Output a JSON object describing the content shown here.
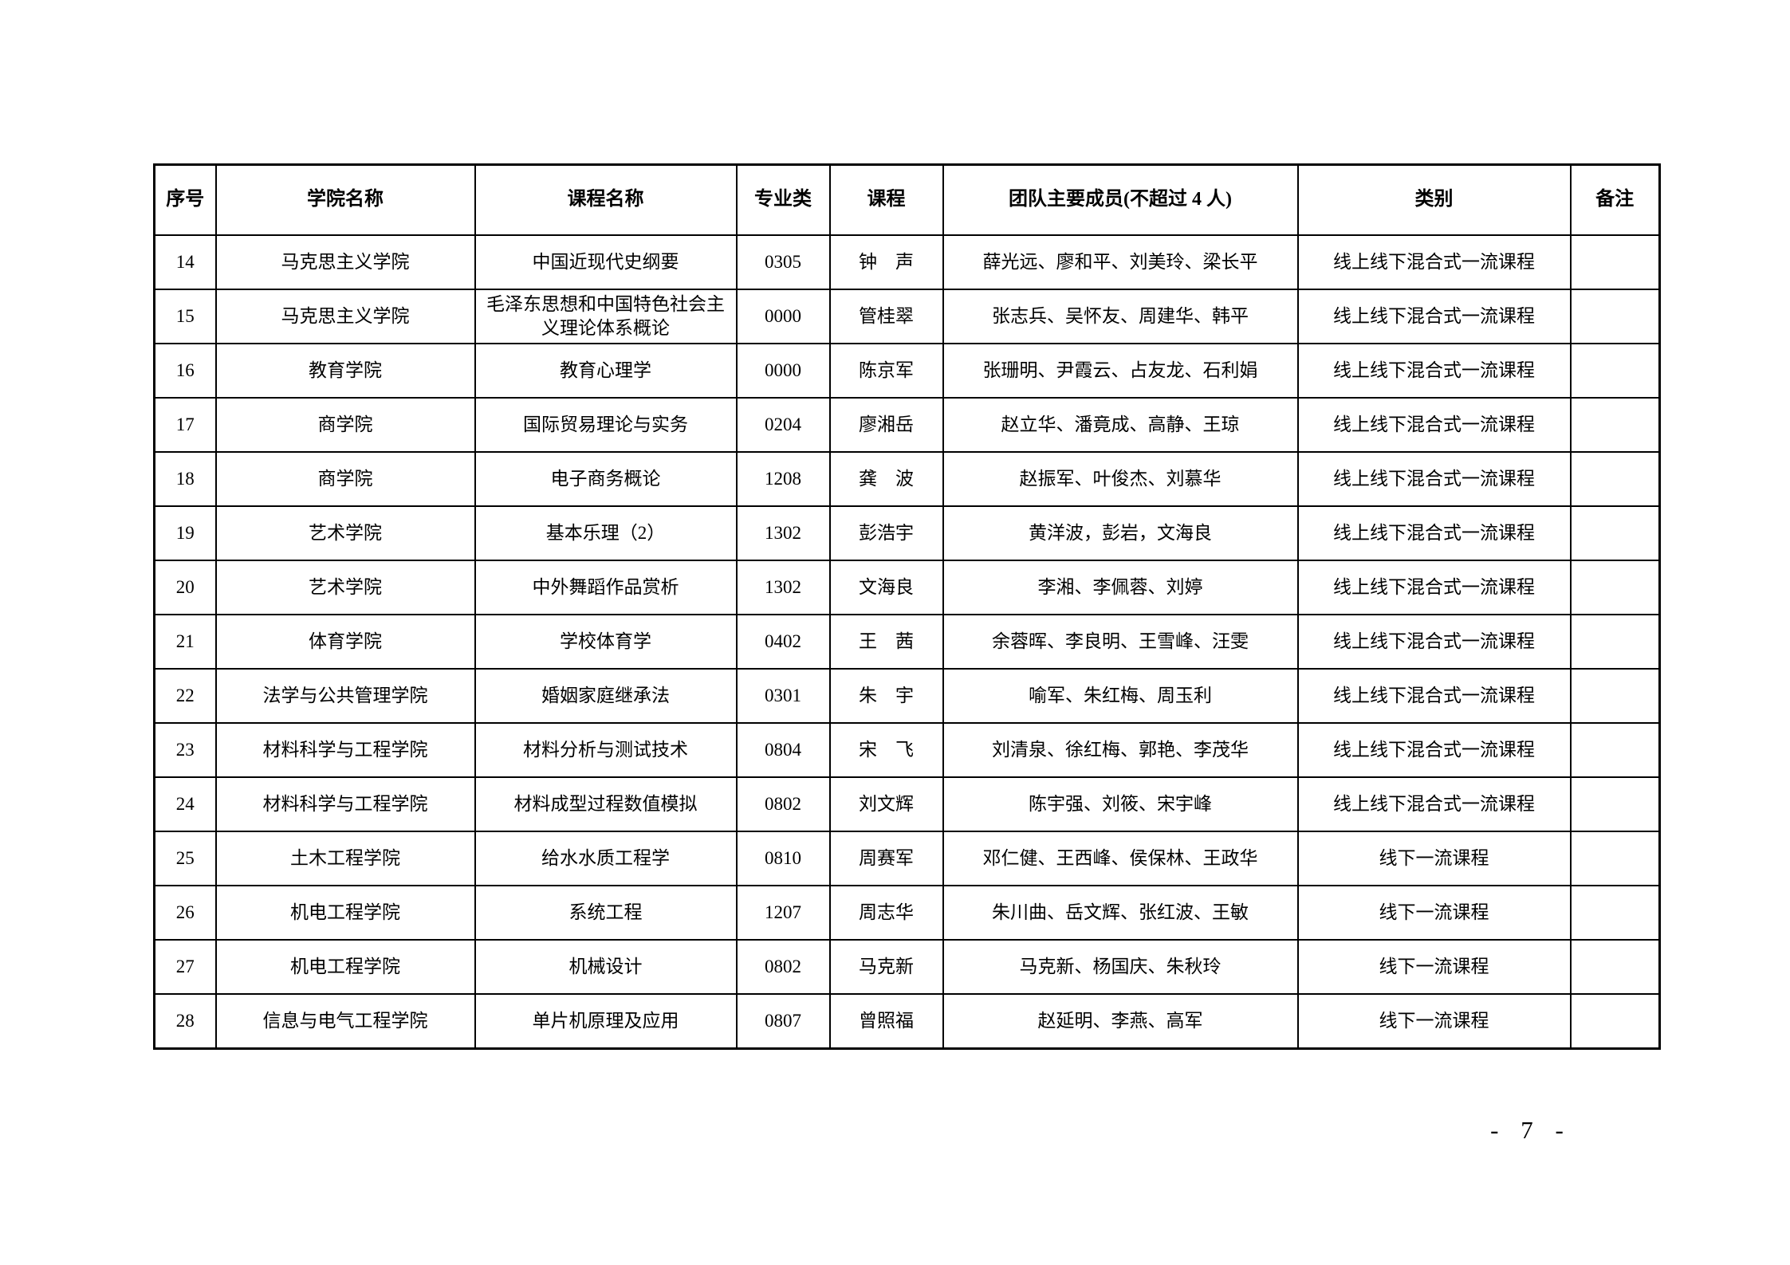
{
  "page": {
    "footer_page_number": "- 7 -"
  },
  "table": {
    "columns": [
      {
        "key": "index",
        "label": "序号"
      },
      {
        "key": "college",
        "label": "学院名称"
      },
      {
        "key": "course",
        "label": "课程名称"
      },
      {
        "key": "major-category",
        "label": "专业类"
      },
      {
        "key": "leader",
        "label": "课程"
      },
      {
        "key": "members",
        "label": "团队主要成员(不超过 4 人)"
      },
      {
        "key": "category",
        "label": "类别"
      },
      {
        "key": "remark",
        "label": "备注"
      }
    ],
    "rows": [
      [
        "14",
        "马克思主义学院",
        "中国近现代史纲要",
        "0305",
        "钟　声",
        "薛光远、廖和平、刘美玲、梁长平",
        "线上线下混合式一流课程",
        ""
      ],
      [
        "15",
        "马克思主义学院",
        "毛泽东思想和中国特色社会主义理论体系概论",
        "0000",
        "管桂翠",
        "张志兵、吴怀友、周建华、韩平",
        "线上线下混合式一流课程",
        ""
      ],
      [
        "16",
        "教育学院",
        "教育心理学",
        "0000",
        "陈京军",
        "张珊明、尹霞云、占友龙、石利娟",
        "线上线下混合式一流课程",
        ""
      ],
      [
        "17",
        "商学院",
        "国际贸易理论与实务",
        "0204",
        "廖湘岳",
        "赵立华、潘竟成、高静、王琼",
        "线上线下混合式一流课程",
        ""
      ],
      [
        "18",
        "商学院",
        "电子商务概论",
        "1208",
        "龚　波",
        "赵振军、叶俊杰、刘慕华",
        "线上线下混合式一流课程",
        ""
      ],
      [
        "19",
        "艺术学院",
        "基本乐理（2）",
        "1302",
        "彭浩宇",
        "黄洋波，彭岩，文海良",
        "线上线下混合式一流课程",
        ""
      ],
      [
        "20",
        "艺术学院",
        "中外舞蹈作品赏析",
        "1302",
        "文海良",
        "李湘、李佩蓉、刘婷",
        "线上线下混合式一流课程",
        ""
      ],
      [
        "21",
        "体育学院",
        "学校体育学",
        "0402",
        "王　茜",
        "余蓉晖、李良明、王雪峰、汪雯",
        "线上线下混合式一流课程",
        ""
      ],
      [
        "22",
        "法学与公共管理学院",
        "婚姻家庭继承法",
        "0301",
        "朱　宇",
        "喻军、朱红梅、周玉利",
        "线上线下混合式一流课程",
        ""
      ],
      [
        "23",
        "材料科学与工程学院",
        "材料分析与测试技术",
        "0804",
        "宋　飞",
        "刘清泉、徐红梅、郭艳、李茂华",
        "线上线下混合式一流课程",
        ""
      ],
      [
        "24",
        "材料科学与工程学院",
        "材料成型过程数值模拟",
        "0802",
        "刘文辉",
        "陈宇强、刘筱、宋宇峰",
        "线上线下混合式一流课程",
        ""
      ],
      [
        "25",
        "土木工程学院",
        "给水水质工程学",
        "0810",
        "周赛军",
        "邓仁健、王西峰、侯保林、王政华",
        "线下一流课程",
        ""
      ],
      [
        "26",
        "机电工程学院",
        "系统工程",
        "1207",
        "周志华",
        "朱川曲、岳文辉、张红波、王敏",
        "线下一流课程",
        ""
      ],
      [
        "27",
        "机电工程学院",
        "机械设计",
        "0802",
        "马克新",
        "马克新、杨国庆、朱秋玲",
        "线下一流课程",
        ""
      ],
      [
        "28",
        "信息与电气工程学院",
        "单片机原理及应用",
        "0807",
        "曾照福",
        "赵延明、李燕、高军",
        "线下一流课程",
        ""
      ]
    ]
  }
}
